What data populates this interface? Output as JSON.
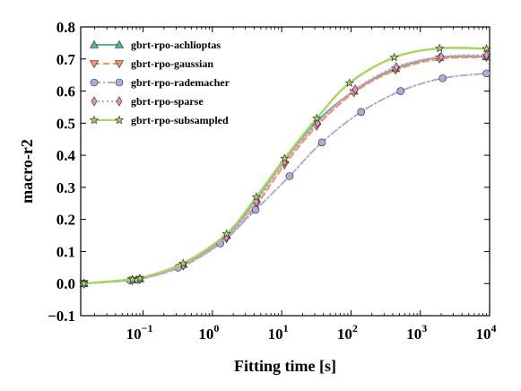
{
  "chart_data": {
    "type": "line",
    "xlabel": "Fitting time [s]",
    "ylabel": "macro-r2",
    "xscale": "log",
    "xlim_log10": [
      -1.9,
      4.0
    ],
    "ylim": [
      -0.1,
      0.8
    ],
    "yticks": [
      "−0.1",
      "0.0",
      "0.1",
      "0.2",
      "0.3",
      "0.4",
      "0.5",
      "0.6",
      "0.7",
      "0.8"
    ],
    "xticks": [
      {
        "base": "10",
        "exp": "−1",
        "log10": -1
      },
      {
        "base": "10",
        "exp": "0",
        "log10": 0
      },
      {
        "base": "10",
        "exp": "1",
        "log10": 1
      },
      {
        "base": "10",
        "exp": "2",
        "log10": 2
      },
      {
        "base": "10",
        "exp": "3",
        "log10": 3
      },
      {
        "base": "10",
        "exp": "4",
        "log10": 4
      }
    ],
    "grid": false,
    "legend_position": "top-left",
    "series": [
      {
        "name": "gbrt-rpo-achlioptas",
        "color": "#4fb99a",
        "dash": "solid",
        "marker": "triangle-up",
        "x": [
          0.014,
          0.07,
          0.09,
          0.38,
          1.6,
          4.3,
          11,
          32,
          110,
          440,
          1900,
          9000
        ],
        "y": [
          0.0,
          0.012,
          0.015,
          0.06,
          0.15,
          0.265,
          0.385,
          0.505,
          0.6,
          0.67,
          0.705,
          0.707
        ]
      },
      {
        "name": "gbrt-rpo-gaussian",
        "color": "#f0956a",
        "dash": "dashed",
        "marker": "triangle-down",
        "x": [
          0.014,
          0.07,
          0.09,
          0.38,
          1.6,
          4.3,
          11,
          32,
          110,
          440,
          1900,
          9000
        ],
        "y": [
          0.0,
          0.01,
          0.013,
          0.055,
          0.14,
          0.245,
          0.37,
          0.49,
          0.595,
          0.665,
          0.7,
          0.705
        ]
      },
      {
        "name": "gbrt-rpo-rademacher",
        "color": "#a6b0d6",
        "dash": "dashdot",
        "marker": "circle",
        "x": [
          0.014,
          0.065,
          0.085,
          0.32,
          1.3,
          4.2,
          13,
          38,
          140,
          520,
          2100,
          9000
        ],
        "y": [
          0.0,
          0.01,
          0.012,
          0.05,
          0.125,
          0.23,
          0.335,
          0.44,
          0.535,
          0.6,
          0.64,
          0.655
        ]
      },
      {
        "name": "gbrt-rpo-sparse",
        "color": "#e293c6",
        "dash": "dotted",
        "marker": "diamond",
        "x": [
          0.014,
          0.07,
          0.09,
          0.38,
          1.6,
          4.3,
          11,
          33,
          115,
          450,
          2000,
          9000
        ],
        "y": [
          0.0,
          0.011,
          0.014,
          0.057,
          0.145,
          0.255,
          0.38,
          0.5,
          0.605,
          0.675,
          0.707,
          0.712
        ]
      },
      {
        "name": "gbrt-rpo-subsampled",
        "color": "#a5d660",
        "dash": "solid",
        "marker": "star",
        "x": [
          0.014,
          0.07,
          0.09,
          0.38,
          1.6,
          4.3,
          11,
          32,
          95,
          420,
          1900,
          9000
        ],
        "y": [
          0.0,
          0.013,
          0.016,
          0.063,
          0.155,
          0.27,
          0.39,
          0.515,
          0.625,
          0.705,
          0.733,
          0.732
        ]
      }
    ]
  }
}
